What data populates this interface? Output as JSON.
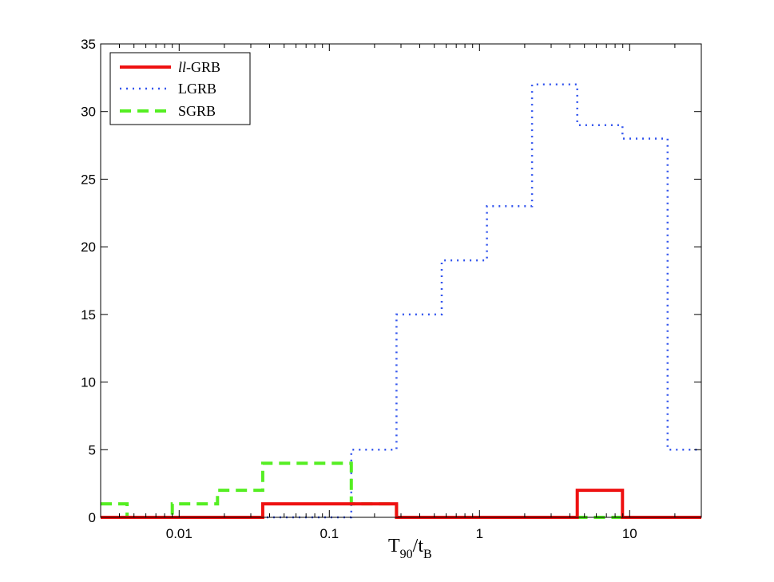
{
  "chart_data": {
    "type": "histogram-step",
    "xscale": "log",
    "xlabel_main": "T",
    "xlabel_sub1": "90",
    "xlabel_mid": "/t",
    "xlabel_sub2": "B",
    "ylabel": "",
    "title": "",
    "xlim": [
      0.003,
      30
    ],
    "ylim": [
      0,
      35
    ],
    "xticks": [
      0.01,
      0.1,
      1,
      10
    ],
    "xtick_labels": [
      "0.01",
      "0.1",
      "1",
      "10"
    ],
    "yticks": [
      0,
      5,
      10,
      15,
      20,
      25,
      30,
      35
    ],
    "ytick_labels": [
      "0",
      "5",
      "10",
      "15",
      "20",
      "25",
      "30",
      "35"
    ],
    "legend_position": "top-left",
    "series": [
      {
        "name": "LGRB",
        "style": "dotted",
        "color": "#3355ee",
        "edges": [
          0.003,
          0.0045,
          0.009,
          0.018,
          0.036,
          0.072,
          0.14,
          0.28,
          0.56,
          1.12,
          2.24,
          4.48,
          8.96,
          17.9,
          30
        ],
        "counts": [
          0,
          0,
          0,
          0,
          0,
          0,
          5,
          15,
          19,
          23,
          32,
          29,
          28,
          5
        ]
      },
      {
        "name": "SGRB",
        "style": "dashed",
        "color": "#55ee22",
        "edges": [
          0.003,
          0.0045,
          0.009,
          0.018,
          0.036,
          0.072,
          0.14,
          0.28,
          0.56,
          1.12,
          2.24,
          4.48,
          8.96,
          17.9,
          30
        ],
        "counts": [
          1,
          0,
          1,
          2,
          4,
          4,
          1,
          0,
          0,
          0,
          0,
          0,
          0,
          0
        ]
      },
      {
        "name": "ll-GRB",
        "name_prefix": "ll",
        "name_suffix": "-GRB",
        "style": "solid",
        "color": "#ee1111",
        "edges": [
          0.003,
          0.0045,
          0.009,
          0.018,
          0.036,
          0.072,
          0.14,
          0.28,
          0.56,
          1.12,
          2.24,
          4.48,
          8.96,
          17.9,
          30
        ],
        "counts": [
          0,
          0,
          0,
          0,
          1,
          1,
          1,
          0,
          0,
          0,
          0,
          2,
          0,
          0
        ]
      }
    ]
  }
}
